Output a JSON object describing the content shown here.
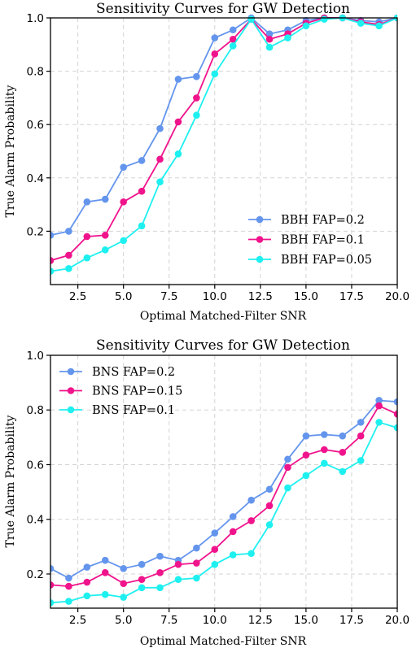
{
  "chart_data": [
    {
      "type": "line",
      "title": "Sensitivity Curves for GW Detection",
      "xlabel": "Optimal Matched-Filter SNR",
      "ylabel": "True Alarm Probability",
      "xlim": [
        1,
        20
      ],
      "ylim": [
        0,
        1.0
      ],
      "xticks": [
        "2.5",
        "5.0",
        "7.5",
        "10.0",
        "12.5",
        "15.0",
        "17.5",
        "20.0"
      ],
      "yticks": [
        "0.2",
        "0.4",
        "0.6",
        "0.8",
        "1.0"
      ],
      "grid": true,
      "legend_position": "lower-right",
      "x": [
        1,
        2,
        3,
        4,
        5,
        6,
        7,
        8,
        9,
        10,
        11,
        12,
        13,
        14,
        15,
        16,
        17,
        18,
        19,
        20
      ],
      "series": [
        {
          "name": "BBH FAP=0.2",
          "color": "#6495ED",
          "values": [
            0.185,
            0.2,
            0.31,
            0.32,
            0.44,
            0.465,
            0.585,
            0.77,
            0.78,
            0.925,
            0.955,
            1.0,
            0.94,
            0.955,
            0.99,
            1.0,
            1.0,
            0.99,
            0.985,
            1.0
          ]
        },
        {
          "name": "BBH FAP=0.1",
          "color": "#F0148C",
          "values": [
            0.09,
            0.11,
            0.18,
            0.185,
            0.31,
            0.35,
            0.47,
            0.61,
            0.7,
            0.865,
            0.92,
            0.995,
            0.92,
            0.94,
            0.98,
            1.0,
            1.0,
            0.985,
            0.975,
            1.0
          ]
        },
        {
          "name": "BBH FAP=0.05",
          "color": "#1EF0F0",
          "values": [
            0.05,
            0.06,
            0.1,
            0.13,
            0.165,
            0.22,
            0.385,
            0.49,
            0.635,
            0.79,
            0.895,
            0.995,
            0.89,
            0.925,
            0.97,
            0.995,
            1.0,
            0.98,
            0.97,
            1.0
          ]
        }
      ]
    },
    {
      "type": "line",
      "title": "Sensitivity Curves for GW Detection",
      "xlabel": "Optimal Matched-Filter SNR",
      "ylabel": "True Alarm Probability",
      "xlim": [
        1,
        20
      ],
      "ylim": [
        0.075,
        1.0
      ],
      "xticks": [
        "2.5",
        "5.0",
        "7.5",
        "10.0",
        "12.5",
        "15.0",
        "17.5",
        "20.0"
      ],
      "yticks": [
        "0.2",
        "0.4",
        "0.6",
        "0.8",
        "1.0"
      ],
      "grid": true,
      "legend_position": "upper-left",
      "x": [
        1,
        2,
        3,
        4,
        5,
        6,
        7,
        8,
        9,
        10,
        11,
        12,
        13,
        14,
        15,
        16,
        17,
        18,
        19,
        20
      ],
      "series": [
        {
          "name": "BNS FAP=0.2",
          "color": "#6495ED",
          "values": [
            0.22,
            0.185,
            0.225,
            0.25,
            0.22,
            0.235,
            0.265,
            0.25,
            0.295,
            0.35,
            0.41,
            0.47,
            0.51,
            0.62,
            0.705,
            0.71,
            0.705,
            0.755,
            0.835,
            0.83
          ]
        },
        {
          "name": "BNS FAP=0.15",
          "color": "#F0148C",
          "values": [
            0.16,
            0.155,
            0.17,
            0.205,
            0.165,
            0.18,
            0.205,
            0.235,
            0.24,
            0.29,
            0.355,
            0.395,
            0.45,
            0.59,
            0.635,
            0.655,
            0.645,
            0.705,
            0.815,
            0.785
          ]
        },
        {
          "name": "BNS FAP=0.1",
          "color": "#1EF0F0",
          "values": [
            0.095,
            0.1,
            0.12,
            0.125,
            0.115,
            0.15,
            0.15,
            0.18,
            0.185,
            0.235,
            0.27,
            0.275,
            0.38,
            0.515,
            0.56,
            0.605,
            0.575,
            0.615,
            0.755,
            0.735
          ]
        }
      ]
    }
  ]
}
